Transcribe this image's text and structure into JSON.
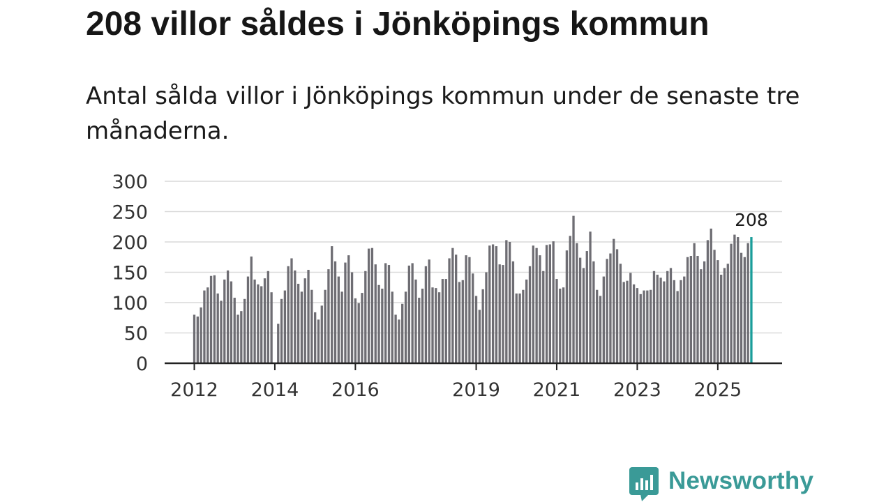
{
  "header": {
    "title": "208 villor såldes i Jönköpings kommun",
    "subtitle": "Antal sålda villor i Jönköpings kommun under de senaste tre månaderna."
  },
  "brand": {
    "name": "Newsworthy",
    "icon": "newsworthy-chart-bubble-icon",
    "color": "#3a9a97"
  },
  "colors": {
    "bar": "#6e6d73",
    "highlight": "#1a9d9a",
    "grid": "#d9d9d9",
    "axis": "#222222"
  },
  "chart_data": {
    "type": "bar",
    "title": "208 villor såldes i Jönköpings kommun",
    "subtitle": "Antal sålda villor i Jönköpings kommun under de senaste tre månaderna.",
    "xlabel": "",
    "ylabel": "",
    "ylim": [
      0,
      300
    ],
    "yticks": [
      0,
      50,
      100,
      150,
      200,
      250,
      300
    ],
    "grid": true,
    "legend": "none",
    "x_start": "2012-01",
    "frequency": "monthly",
    "xtick_labels": [
      {
        "label": "2012",
        "index": 0
      },
      {
        "label": "2014",
        "index": 24
      },
      {
        "label": "2016",
        "index": 48
      },
      {
        "label": "2019",
        "index": 84
      },
      {
        "label": "2021",
        "index": 108
      },
      {
        "label": "2023",
        "index": 132
      },
      {
        "label": "2025",
        "index": 156
      }
    ],
    "values": [
      80,
      77,
      92,
      120,
      125,
      144,
      145,
      115,
      103,
      138,
      153,
      135,
      108,
      80,
      86,
      106,
      143,
      176,
      138,
      130,
      127,
      140,
      152,
      117,
      null,
      65,
      106,
      120,
      160,
      173,
      153,
      131,
      118,
      140,
      154,
      121,
      84,
      72,
      95,
      121,
      155,
      193,
      168,
      143,
      118,
      166,
      178,
      150,
      107,
      99,
      116,
      152,
      189,
      190,
      163,
      129,
      123,
      165,
      162,
      118,
      80,
      72,
      98,
      118,
      161,
      165,
      138,
      108,
      123,
      160,
      171,
      125,
      124,
      117,
      139,
      139,
      173,
      190,
      179,
      134,
      137,
      178,
      175,
      148,
      111,
      88,
      122,
      150,
      194,
      196,
      193,
      163,
      162,
      203,
      200,
      168,
      115,
      115,
      121,
      138,
      160,
      194,
      190,
      178,
      152,
      195,
      196,
      201,
      139,
      123,
      125,
      186,
      210,
      243,
      198,
      174,
      157,
      185,
      217,
      168,
      121,
      111,
      143,
      172,
      181,
      205,
      188,
      164,
      134,
      136,
      149,
      130,
      124,
      114,
      120,
      120,
      121,
      152,
      146,
      141,
      135,
      152,
      157,
      137,
      119,
      137,
      143,
      175,
      177,
      198,
      177,
      155,
      168,
      203,
      222,
      187,
      170,
      146,
      157,
      164,
      197,
      212,
      208,
      182,
      175,
      198,
      208
    ],
    "highlight": {
      "index": 166,
      "value": 208,
      "label": "208"
    }
  }
}
